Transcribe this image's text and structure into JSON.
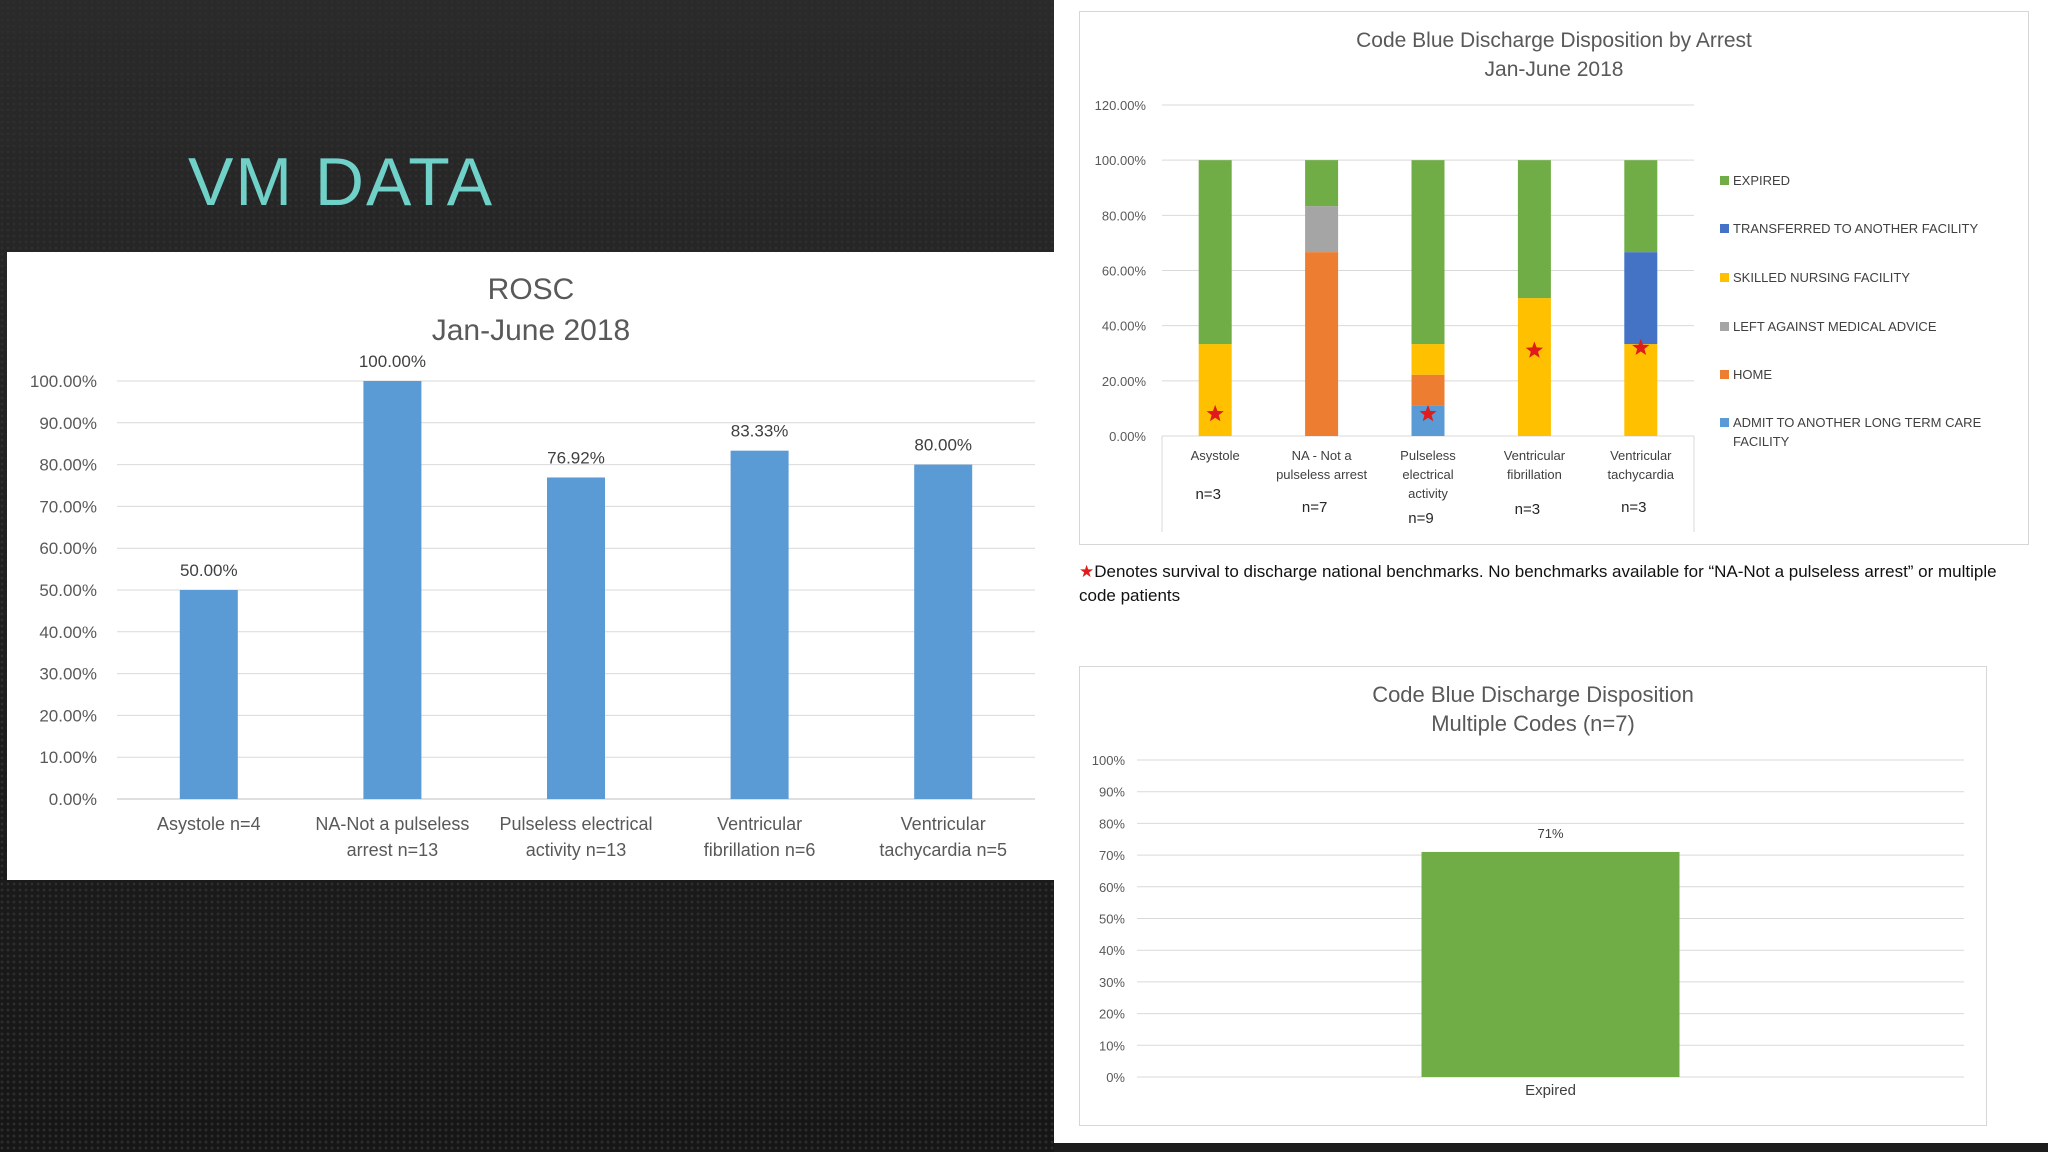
{
  "slide": {
    "title": "VM DATA"
  },
  "footnote": {
    "star": "★",
    "text": "Denotes survival to discharge national benchmarks. No benchmarks available for “NA-Not a pulseless arrest” or multiple code patients"
  },
  "colors": {
    "rosc_bar": "#5b9bd5",
    "expired": "#70ad47",
    "transferred": "#4472c4",
    "skilled_nursing": "#ffc000",
    "left_ama": "#a5a5a5",
    "home": "#ed7d31",
    "admit_ltc": "#5b9bd5",
    "title_teal": "#6fd1c8"
  },
  "chart_data": [
    {
      "type": "bar",
      "title": "ROSC",
      "subtitle": "Jan-June 2018",
      "categories": [
        [
          "Asystole n=4"
        ],
        [
          "NA-Not a pulseless",
          "arrest n=13"
        ],
        [
          "Pulseless electrical",
          "activity n=13"
        ],
        [
          "Ventricular",
          "fibrillation n=6"
        ],
        [
          "Ventricular",
          "tachycardia n=5"
        ]
      ],
      "values": [
        50.0,
        100.0,
        76.92,
        83.33,
        80.0
      ],
      "data_labels": [
        "50.00%",
        "100.00%",
        "76.92%",
        "83.33%",
        "80.00%"
      ],
      "ylim": [
        0,
        100
      ],
      "yticks": [
        "0.00%",
        "10.00%",
        "20.00%",
        "30.00%",
        "40.00%",
        "50.00%",
        "60.00%",
        "70.00%",
        "80.00%",
        "90.00%",
        "100.00%"
      ],
      "grid": true
    },
    {
      "type": "bar",
      "stacked": true,
      "title": "Code Blue Discharge Disposition by Arrest",
      "subtitle": "Jan-June 2018",
      "categories": [
        [
          "Asystole"
        ],
        [
          "NA - Not a",
          "pulseless arrest"
        ],
        [
          "Pulseless",
          "electrical",
          "activity"
        ],
        [
          "Ventricular",
          "fibrillation"
        ],
        [
          "Ventricular",
          "tachycardia"
        ]
      ],
      "counts": [
        "n=3",
        "n=7",
        "n=9",
        "n=3",
        "n=3"
      ],
      "series": [
        {
          "name": "ADMIT TO ANOTHER LONG TERM CARE FACILITY",
          "color_key": "admit_ltc",
          "values": [
            0,
            0,
            11.11,
            0,
            0
          ]
        },
        {
          "name": "HOME",
          "color_key": "home",
          "values": [
            0,
            66.67,
            11.11,
            0,
            0
          ]
        },
        {
          "name": "LEFT AGAINST MEDICAL ADVICE",
          "color_key": "left_ama",
          "values": [
            0,
            16.67,
            0,
            0,
            0
          ]
        },
        {
          "name": "SKILLED NURSING FACILITY",
          "color_key": "skilled_nursing",
          "values": [
            33.33,
            0,
            11.11,
            50.0,
            33.33
          ]
        },
        {
          "name": "TRANSFERRED TO ANOTHER FACILITY",
          "color_key": "transferred",
          "values": [
            0,
            0,
            0,
            0,
            33.33
          ]
        },
        {
          "name": "EXPIRED",
          "color_key": "expired",
          "values": [
            66.67,
            16.67,
            66.67,
            50.0,
            33.33
          ]
        }
      ],
      "benchmark_stars": [
        8,
        null,
        8,
        31,
        32
      ],
      "ylim": [
        0,
        120
      ],
      "yticks": [
        "0.00%",
        "20.00%",
        "40.00%",
        "60.00%",
        "80.00%",
        "100.00%",
        "120.00%"
      ],
      "legend_order": [
        "EXPIRED",
        "TRANSFERRED TO ANOTHER FACILITY",
        "SKILLED NURSING FACILITY",
        "LEFT AGAINST MEDICAL ADVICE",
        "HOME",
        "ADMIT TO ANOTHER LONG TERM CARE FACILITY"
      ],
      "legend": "right",
      "grid": true
    },
    {
      "type": "bar",
      "title": "Code Blue Discharge Disposition",
      "subtitle": "Multiple Codes (n=7)",
      "categories": [
        "Expired"
      ],
      "values": [
        71
      ],
      "data_labels": [
        "71%"
      ],
      "ylim": [
        0,
        100
      ],
      "yticks": [
        "0%",
        "10%",
        "20%",
        "30%",
        "40%",
        "50%",
        "60%",
        "70%",
        "80%",
        "90%",
        "100%"
      ],
      "grid": true
    }
  ]
}
